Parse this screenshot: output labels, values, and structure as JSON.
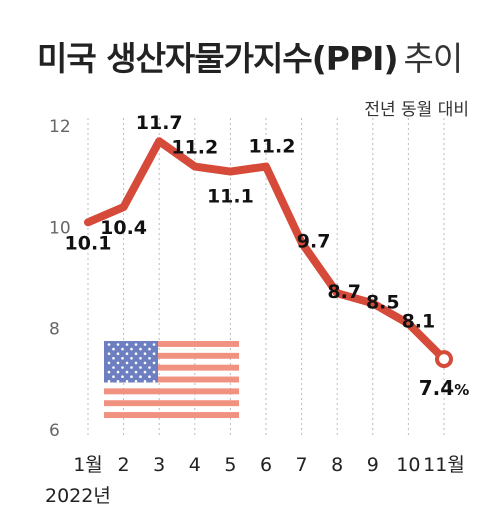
{
  "title": {
    "main": "미국 생산자물가지수(PPI)",
    "sub": "추이"
  },
  "subtitle": "전년 동월 대비",
  "year_label": "2022년",
  "colors": {
    "line": "#d64a3a",
    "grid": "#bbbbbb",
    "flag_red": "#f1917f",
    "flag_blue": "#6d7fc1"
  },
  "icons": [
    "us-flag-icon"
  ],
  "chart_data": {
    "type": "line",
    "title": "미국 생산자물가지수(PPI) 추이",
    "subtitle": "전년 동월 대비",
    "categories": [
      "1월",
      "2",
      "3",
      "4",
      "5",
      "6",
      "7",
      "8",
      "9",
      "10",
      "11월"
    ],
    "values": [
      10.1,
      10.4,
      11.7,
      11.2,
      11.1,
      11.2,
      9.7,
      8.7,
      8.5,
      8.1,
      7.4
    ],
    "value_labels": [
      "10.1",
      "10.4",
      "11.7",
      "11.2",
      "11.1",
      "11.2",
      "9.7",
      "8.7",
      "8.5",
      "8.1",
      "7.4"
    ],
    "last_value_unit": "%",
    "yticks": [
      "6",
      "8",
      "10",
      "12"
    ],
    "ylim": [
      6,
      12
    ],
    "year": "2022년",
    "grid": "vertical dotted",
    "legend": "none"
  }
}
